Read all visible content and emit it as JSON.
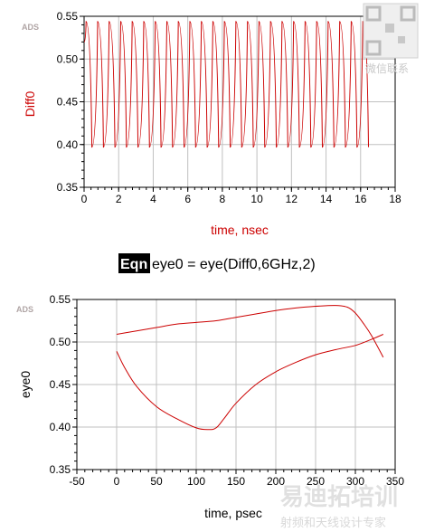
{
  "colors": {
    "trace": "#cc0000",
    "grid": "#c0c0c0",
    "axis": "#000000",
    "ads": "#b0a5a5"
  },
  "equation": {
    "badge": "Eqn",
    "text": "eye0 = eye(Diff0,6GHz,2)"
  },
  "watermark": {
    "top": "微信联系",
    "bottom_big": "易迪拓培训",
    "bottom_small": "射频和天线设计专家"
  },
  "chart_data": [
    {
      "type": "line",
      "ads_label": "ADS",
      "xlabel": "time, nsec",
      "ylabel": "Diff0",
      "xlim": [
        0,
        18
      ],
      "ylim": [
        0.35,
        0.55
      ],
      "xticks": [
        "0",
        "2",
        "4",
        "6",
        "8",
        "10",
        "12",
        "14",
        "16",
        "18"
      ],
      "yticks": [
        "0.35",
        "0.40",
        "0.45",
        "0.50",
        "0.55"
      ],
      "grid": true,
      "series": [
        {
          "t_start": 0.0,
          "t_end": 16.5,
          "period": 0.667,
          "high": 0.544,
          "low": 0.397,
          "start_level": 0.52
        }
      ]
    },
    {
      "type": "line",
      "ads_label": "ADS",
      "xlabel": "time, psec",
      "ylabel": "eye0",
      "xlim": [
        -50,
        350
      ],
      "ylim": [
        0.35,
        0.55
      ],
      "xticks": [
        "-50",
        "0",
        "50",
        "100",
        "150",
        "200",
        "250",
        "300",
        "350"
      ],
      "yticks": [
        "0.35",
        "0.40",
        "0.45",
        "0.50",
        "0.55"
      ],
      "grid": true,
      "series": [
        {
          "x": [
            0,
            25,
            50,
            75,
            100,
            125,
            150,
            175,
            200,
            225,
            250,
            275,
            290,
            300,
            310,
            320,
            335
          ],
          "y": [
            0.509,
            0.513,
            0.517,
            0.521,
            0.523,
            0.525,
            0.529,
            0.533,
            0.537,
            0.54,
            0.542,
            0.543,
            0.541,
            0.534,
            0.522,
            0.508,
            0.482
          ]
        },
        {
          "x": [
            0,
            10,
            25,
            50,
            75,
            100,
            115,
            125,
            135,
            150,
            175,
            200,
            225,
            250,
            275,
            300,
            320,
            335
          ],
          "y": [
            0.489,
            0.47,
            0.448,
            0.424,
            0.41,
            0.399,
            0.397,
            0.399,
            0.41,
            0.428,
            0.45,
            0.465,
            0.476,
            0.485,
            0.491,
            0.496,
            0.503,
            0.509
          ]
        }
      ]
    }
  ]
}
